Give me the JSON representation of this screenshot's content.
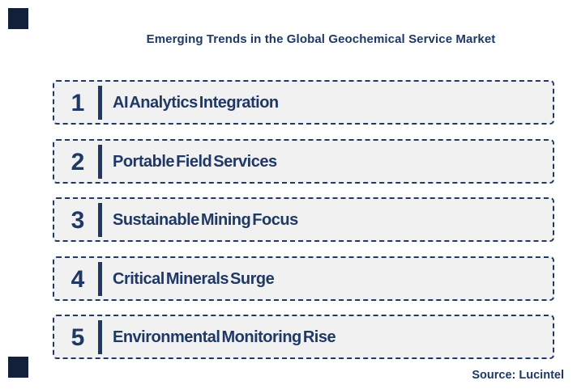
{
  "title": "Emerging Trends in the Global Geochemical Service Market",
  "source": "Source: Lucintel",
  "colors": {
    "text_navy": "#1f3864",
    "border_navy": "#203864",
    "box_fill": "#f1f1f2",
    "corner_square": "#13203a",
    "background": "#ffffff"
  },
  "trends": [
    {
      "number": "1",
      "label": "AI Analytics Integration"
    },
    {
      "number": "2",
      "label": "Portable Field Services"
    },
    {
      "number": "3",
      "label": "Sustainable Mining Focus"
    },
    {
      "number": "4",
      "label": "Critical Minerals Surge"
    },
    {
      "number": "5",
      "label": "Environmental Monitoring Rise"
    }
  ]
}
